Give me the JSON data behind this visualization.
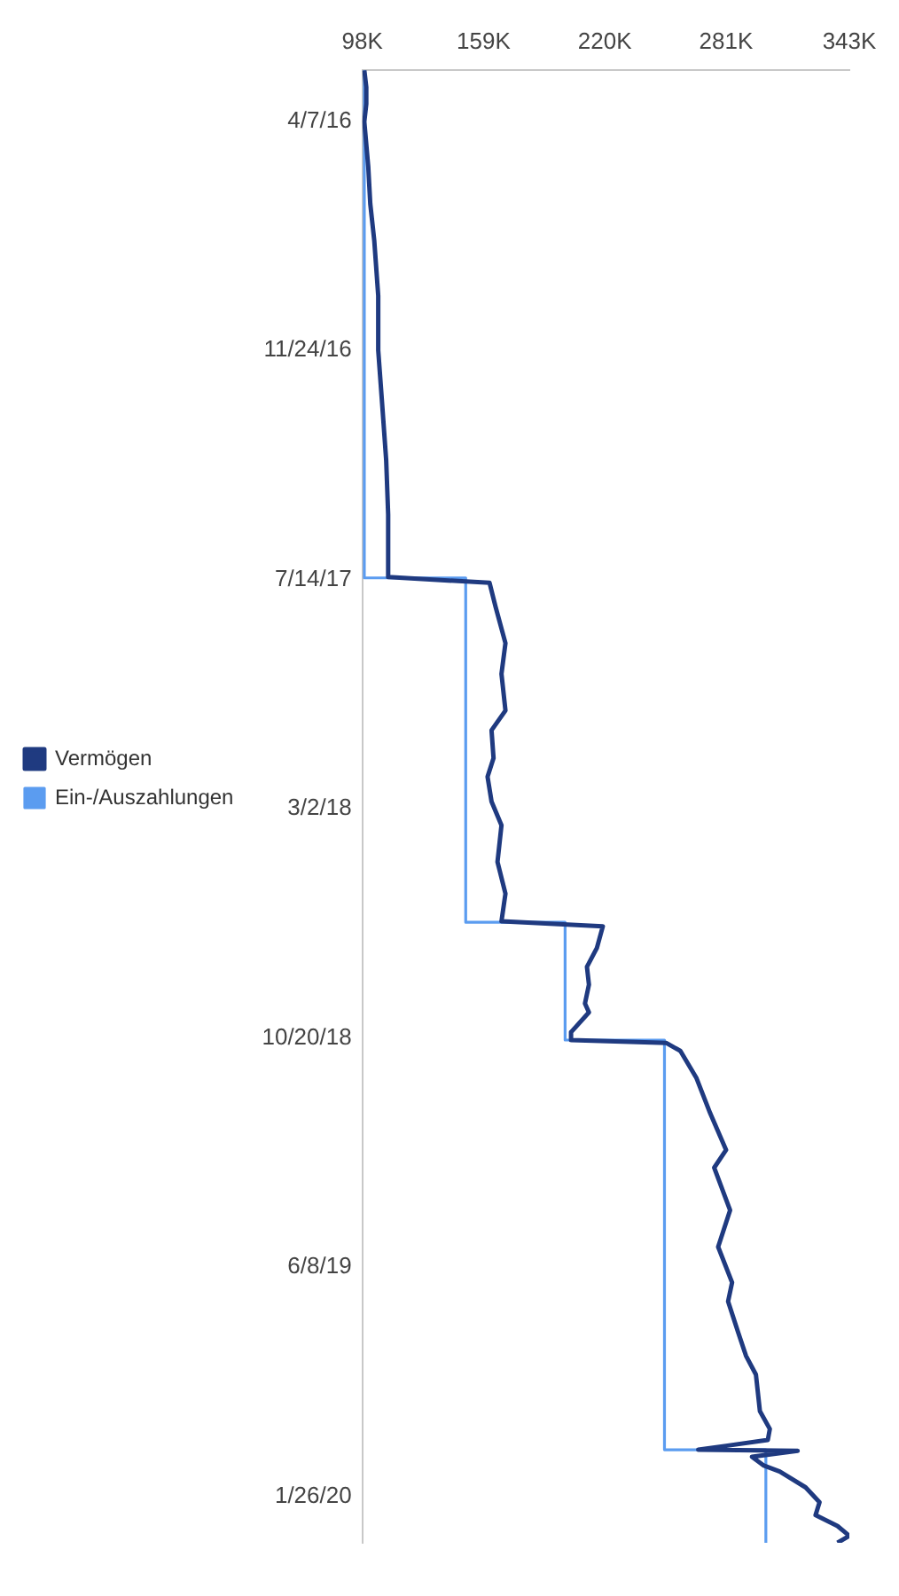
{
  "chart_data": {
    "type": "line",
    "orientation": "horizontal",
    "legend": "left",
    "xlim": [
      98000,
      343000
    ],
    "xticks": [
      {
        "value": 98000,
        "label": "98K"
      },
      {
        "value": 159000,
        "label": "159K"
      },
      {
        "value": 220000,
        "label": "220K"
      },
      {
        "value": 281000,
        "label": "281K"
      },
      {
        "value": 343000,
        "label": "343K"
      }
    ],
    "ylim": [
      "2020-03-13",
      "2016-02-15"
    ],
    "yticks": [
      {
        "value": "2016-04-07",
        "label": "4/7/16"
      },
      {
        "value": "2016-11-24",
        "label": "11/24/16"
      },
      {
        "value": "2017-07-14",
        "label": "7/14/17"
      },
      {
        "value": "2018-03-02",
        "label": "3/2/18"
      },
      {
        "value": "2018-10-20",
        "label": "10/20/18"
      },
      {
        "value": "2019-06-08",
        "label": "6/8/19"
      },
      {
        "value": "2020-01-26",
        "label": "1/26/20"
      }
    ],
    "series": [
      {
        "name": "Vermögen",
        "color": "#1f3a80",
        "type": "line",
        "x": [
          "2016-02-15",
          "2016-03-03",
          "2016-03-20",
          "2016-04-07",
          "2016-05-23",
          "2016-06-29",
          "2016-08-05",
          "2016-09-30",
          "2016-11-24",
          "2017-01-18",
          "2017-03-15",
          "2017-05-09",
          "2017-07-11",
          "2017-07-17",
          "2017-08-10",
          "2017-09-16",
          "2017-10-17",
          "2017-11-23",
          "2017-12-13",
          "2018-01-10",
          "2018-01-29",
          "2018-02-23",
          "2018-03-19",
          "2018-04-25",
          "2018-05-27",
          "2018-06-24",
          "2018-06-29",
          "2018-07-21",
          "2018-08-09",
          "2018-08-27",
          "2018-09-15",
          "2018-09-24",
          "2018-10-14",
          "2018-10-22",
          "2018-10-25",
          "2018-11-02",
          "2018-11-29",
          "2019-01-04",
          "2019-02-10",
          "2019-02-28",
          "2019-04-12",
          "2019-05-19",
          "2019-06-24",
          "2019-07-13",
          "2019-08-13",
          "2019-09-06",
          "2019-09-25",
          "2019-11-01",
          "2019-11-19",
          "2019-11-30",
          "2019-12-06",
          "2019-12-10",
          "2019-12-11",
          "2019-12-17",
          "2019-12-26",
          "2020-01-01",
          "2020-01-17",
          "2020-02-01",
          "2020-02-14",
          "2020-02-25",
          "2020-03-06",
          "2020-03-13"
        ],
        "values": [
          99000,
          100000,
          100000,
          99000,
          101000,
          102000,
          104000,
          106000,
          106000,
          108000,
          110000,
          111000,
          111000,
          162000,
          165000,
          170000,
          168000,
          170000,
          163000,
          164000,
          161000,
          163000,
          168000,
          166000,
          170000,
          168000,
          219000,
          216000,
          211000,
          212000,
          210000,
          212000,
          203000,
          203000,
          251000,
          258000,
          266000,
          273000,
          281000,
          275000,
          283000,
          277000,
          284000,
          282000,
          287000,
          291000,
          296000,
          298000,
          303000,
          302000,
          281000,
          267000,
          317000,
          294000,
          300000,
          308000,
          321000,
          328000,
          326000,
          337000,
          343000,
          337000
        ]
      },
      {
        "name": "Ein-/Auszahlungen",
        "color": "#5b9cf0",
        "type": "step",
        "x": [
          "2016-02-15",
          "2017-07-12",
          "2018-06-25",
          "2018-10-22",
          "2019-12-10",
          "2020-03-13"
        ],
        "values": [
          99000,
          150000,
          200000,
          250000,
          301000,
          301000
        ]
      }
    ]
  }
}
